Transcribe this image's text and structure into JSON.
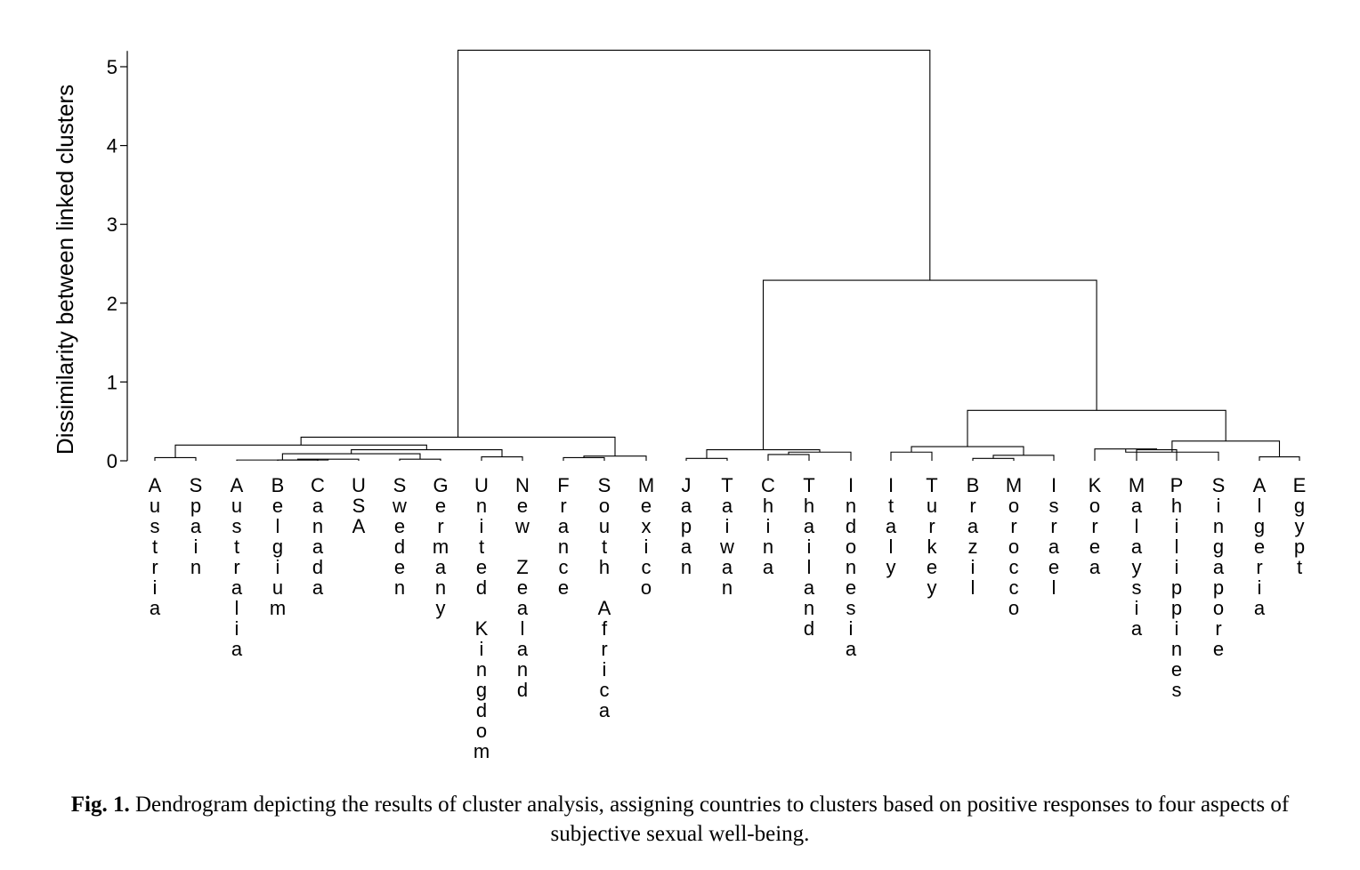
{
  "chart_data": {
    "type": "dendrogram",
    "ylabel": "Dissimilarity between linked clusters",
    "ylim": [
      0,
      5.2
    ],
    "yticks": [
      "0",
      "1",
      "2",
      "3",
      "4",
      "5"
    ],
    "leaves": [
      "Austria",
      "Spain",
      "Australia",
      "Belgium",
      "Canada",
      "USA",
      "Sweden",
      "Germany",
      "United Kingdom",
      "New Zealand",
      "France",
      "South Africa",
      "Mexico",
      "Japan",
      "Taiwan",
      "China",
      "Thailand",
      "Indonesia",
      "Italy",
      "Turkey",
      "Brazil",
      "Morocco",
      "Israel",
      "Korea",
      "Malaysia",
      "Philippines",
      "Singapore",
      "Algeria",
      "Egypt"
    ],
    "merges": [
      {
        "id": "A",
        "children": [
          3,
          4
        ],
        "height": 0.01
      },
      {
        "id": "B",
        "children": [
          "A",
          5
        ],
        "height": 0.02
      },
      {
        "id": "C",
        "children": [
          2,
          "B"
        ],
        "height": 0.01
      },
      {
        "id": "D",
        "children": [
          6,
          7
        ],
        "height": 0.02
      },
      {
        "id": "E",
        "children": [
          "C",
          "D"
        ],
        "height": 0.09
      },
      {
        "id": "F",
        "children": [
          8,
          9
        ],
        "height": 0.05
      },
      {
        "id": "G",
        "children": [
          "E",
          "F"
        ],
        "height": 0.14
      },
      {
        "id": "H",
        "children": [
          0,
          1
        ],
        "height": 0.04
      },
      {
        "id": "I",
        "children": [
          "H",
          "G"
        ],
        "height": 0.2
      },
      {
        "id": "J",
        "children": [
          10,
          11
        ],
        "height": 0.04
      },
      {
        "id": "K",
        "children": [
          "J",
          12
        ],
        "height": 0.06
      },
      {
        "id": "L",
        "children": [
          "I",
          "K"
        ],
        "height": 0.3
      },
      {
        "id": "M",
        "children": [
          13,
          14
        ],
        "height": 0.03
      },
      {
        "id": "N",
        "children": [
          15,
          16
        ],
        "height": 0.08
      },
      {
        "id": "O",
        "children": [
          "N",
          17
        ],
        "height": 0.11
      },
      {
        "id": "P",
        "children": [
          "M",
          "O"
        ],
        "height": 0.14
      },
      {
        "id": "Q",
        "children": [
          18,
          19
        ],
        "height": 0.11
      },
      {
        "id": "R",
        "children": [
          20,
          21
        ],
        "height": 0.03
      },
      {
        "id": "S",
        "children": [
          "R",
          22
        ],
        "height": 0.07
      },
      {
        "id": "T",
        "children": [
          "Q",
          "S"
        ],
        "height": 0.18
      },
      {
        "id": "U",
        "children": [
          24,
          25
        ],
        "height": 0.14
      },
      {
        "id": "V",
        "children": [
          23,
          "U"
        ],
        "height": 0.15
      },
      {
        "id": "W",
        "children": [
          26,
          "V"
        ],
        "height": 0.11
      },
      {
        "id": "X",
        "children": [
          27,
          28
        ],
        "height": 0.05
      },
      {
        "id": "Y",
        "children": [
          "W",
          "X"
        ],
        "height": 0.25
      },
      {
        "id": "Z",
        "children": [
          "T",
          "Y"
        ],
        "height": 0.64
      },
      {
        "id": "AA",
        "children": [
          "P",
          "Z"
        ],
        "height": 2.29
      },
      {
        "id": "AB",
        "children": [
          "L",
          "AA"
        ],
        "height": 5.21
      }
    ]
  },
  "caption": {
    "label": "Fig. 1.",
    "text": "Dendrogram depicting the results of cluster analysis, assigning countries to clusters based on positive responses to four aspects of subjective sexual well-being."
  }
}
